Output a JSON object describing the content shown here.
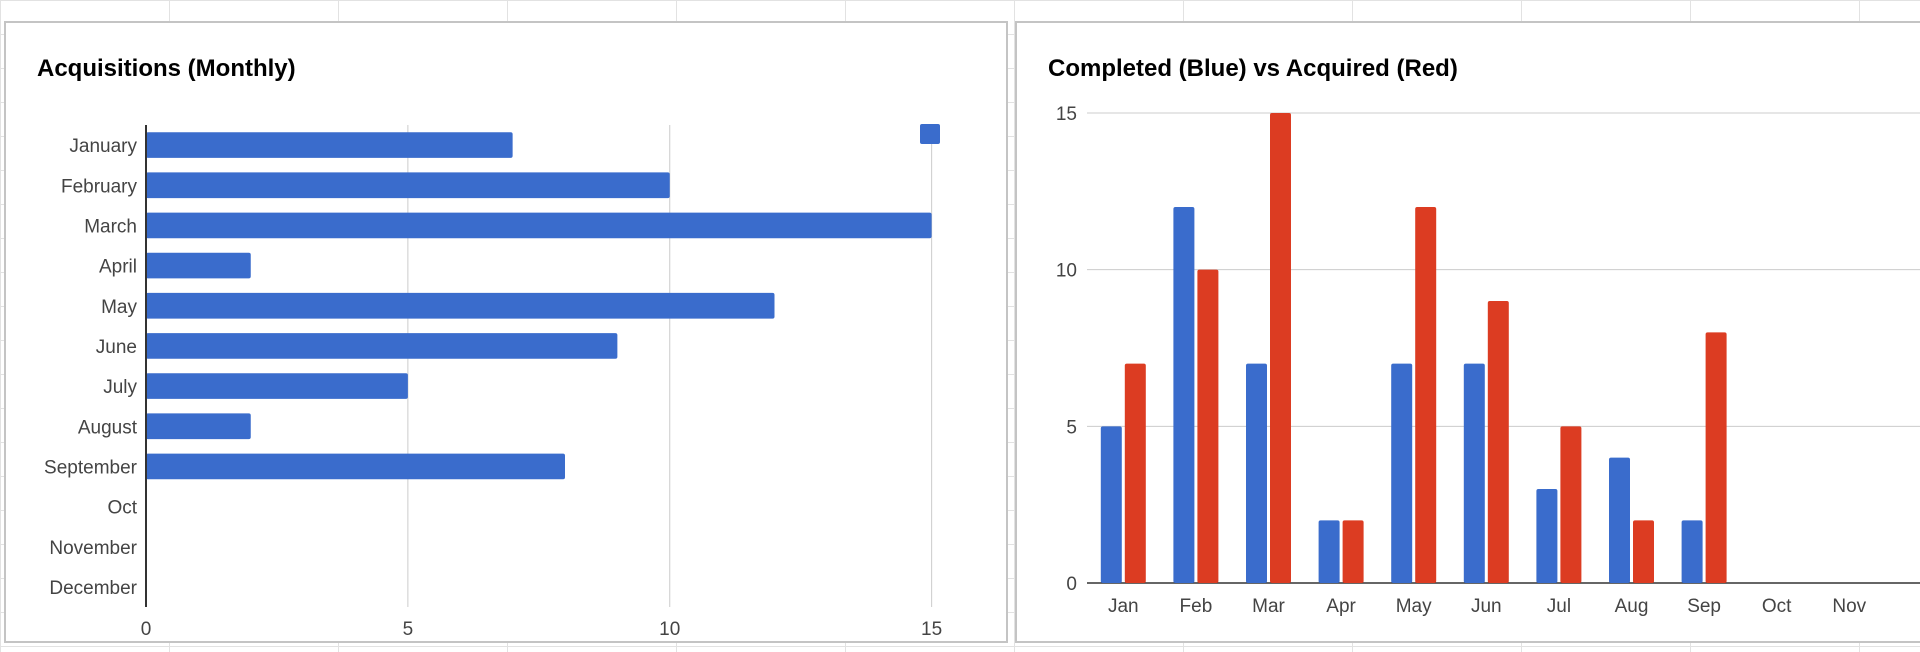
{
  "colors": {
    "blue": "#3a6ccc",
    "red": "#dc3c22",
    "grid": "#cccccc",
    "axis": "#333333"
  },
  "chart_data": [
    {
      "type": "bar",
      "orientation": "horizontal",
      "title": "Acquisitions (Monthly)",
      "categories": [
        "January",
        "February",
        "March",
        "April",
        "May",
        "June",
        "July",
        "August",
        "September",
        "Oct",
        "November",
        "December"
      ],
      "values": [
        7,
        10,
        15,
        2,
        12,
        9,
        5,
        2,
        8,
        0,
        0,
        0
      ],
      "xlim": [
        0,
        16
      ],
      "xticks": [
        0,
        5,
        10,
        15
      ],
      "grid": true,
      "legend": {
        "position": "top-right",
        "color": "#3a6ccc"
      }
    },
    {
      "type": "bar",
      "orientation": "vertical",
      "title": "Completed (Blue) vs Acquired (Red)",
      "categories": [
        "Jan",
        "Feb",
        "Mar",
        "Apr",
        "May",
        "Jun",
        "Jul",
        "Aug",
        "Sep",
        "Oct",
        "Nov"
      ],
      "series": [
        {
          "color": "#3a6ccc",
          "values": [
            5,
            12,
            7,
            2,
            7,
            7,
            3,
            4,
            2,
            0,
            0
          ]
        },
        {
          "color": "#dc3c22",
          "values": [
            7,
            10,
            15,
            2,
            12,
            9,
            5,
            2,
            8,
            0,
            0
          ]
        }
      ],
      "ylim": [
        0,
        15
      ],
      "yticks": [
        0,
        5,
        10,
        15
      ],
      "grid": true
    }
  ]
}
